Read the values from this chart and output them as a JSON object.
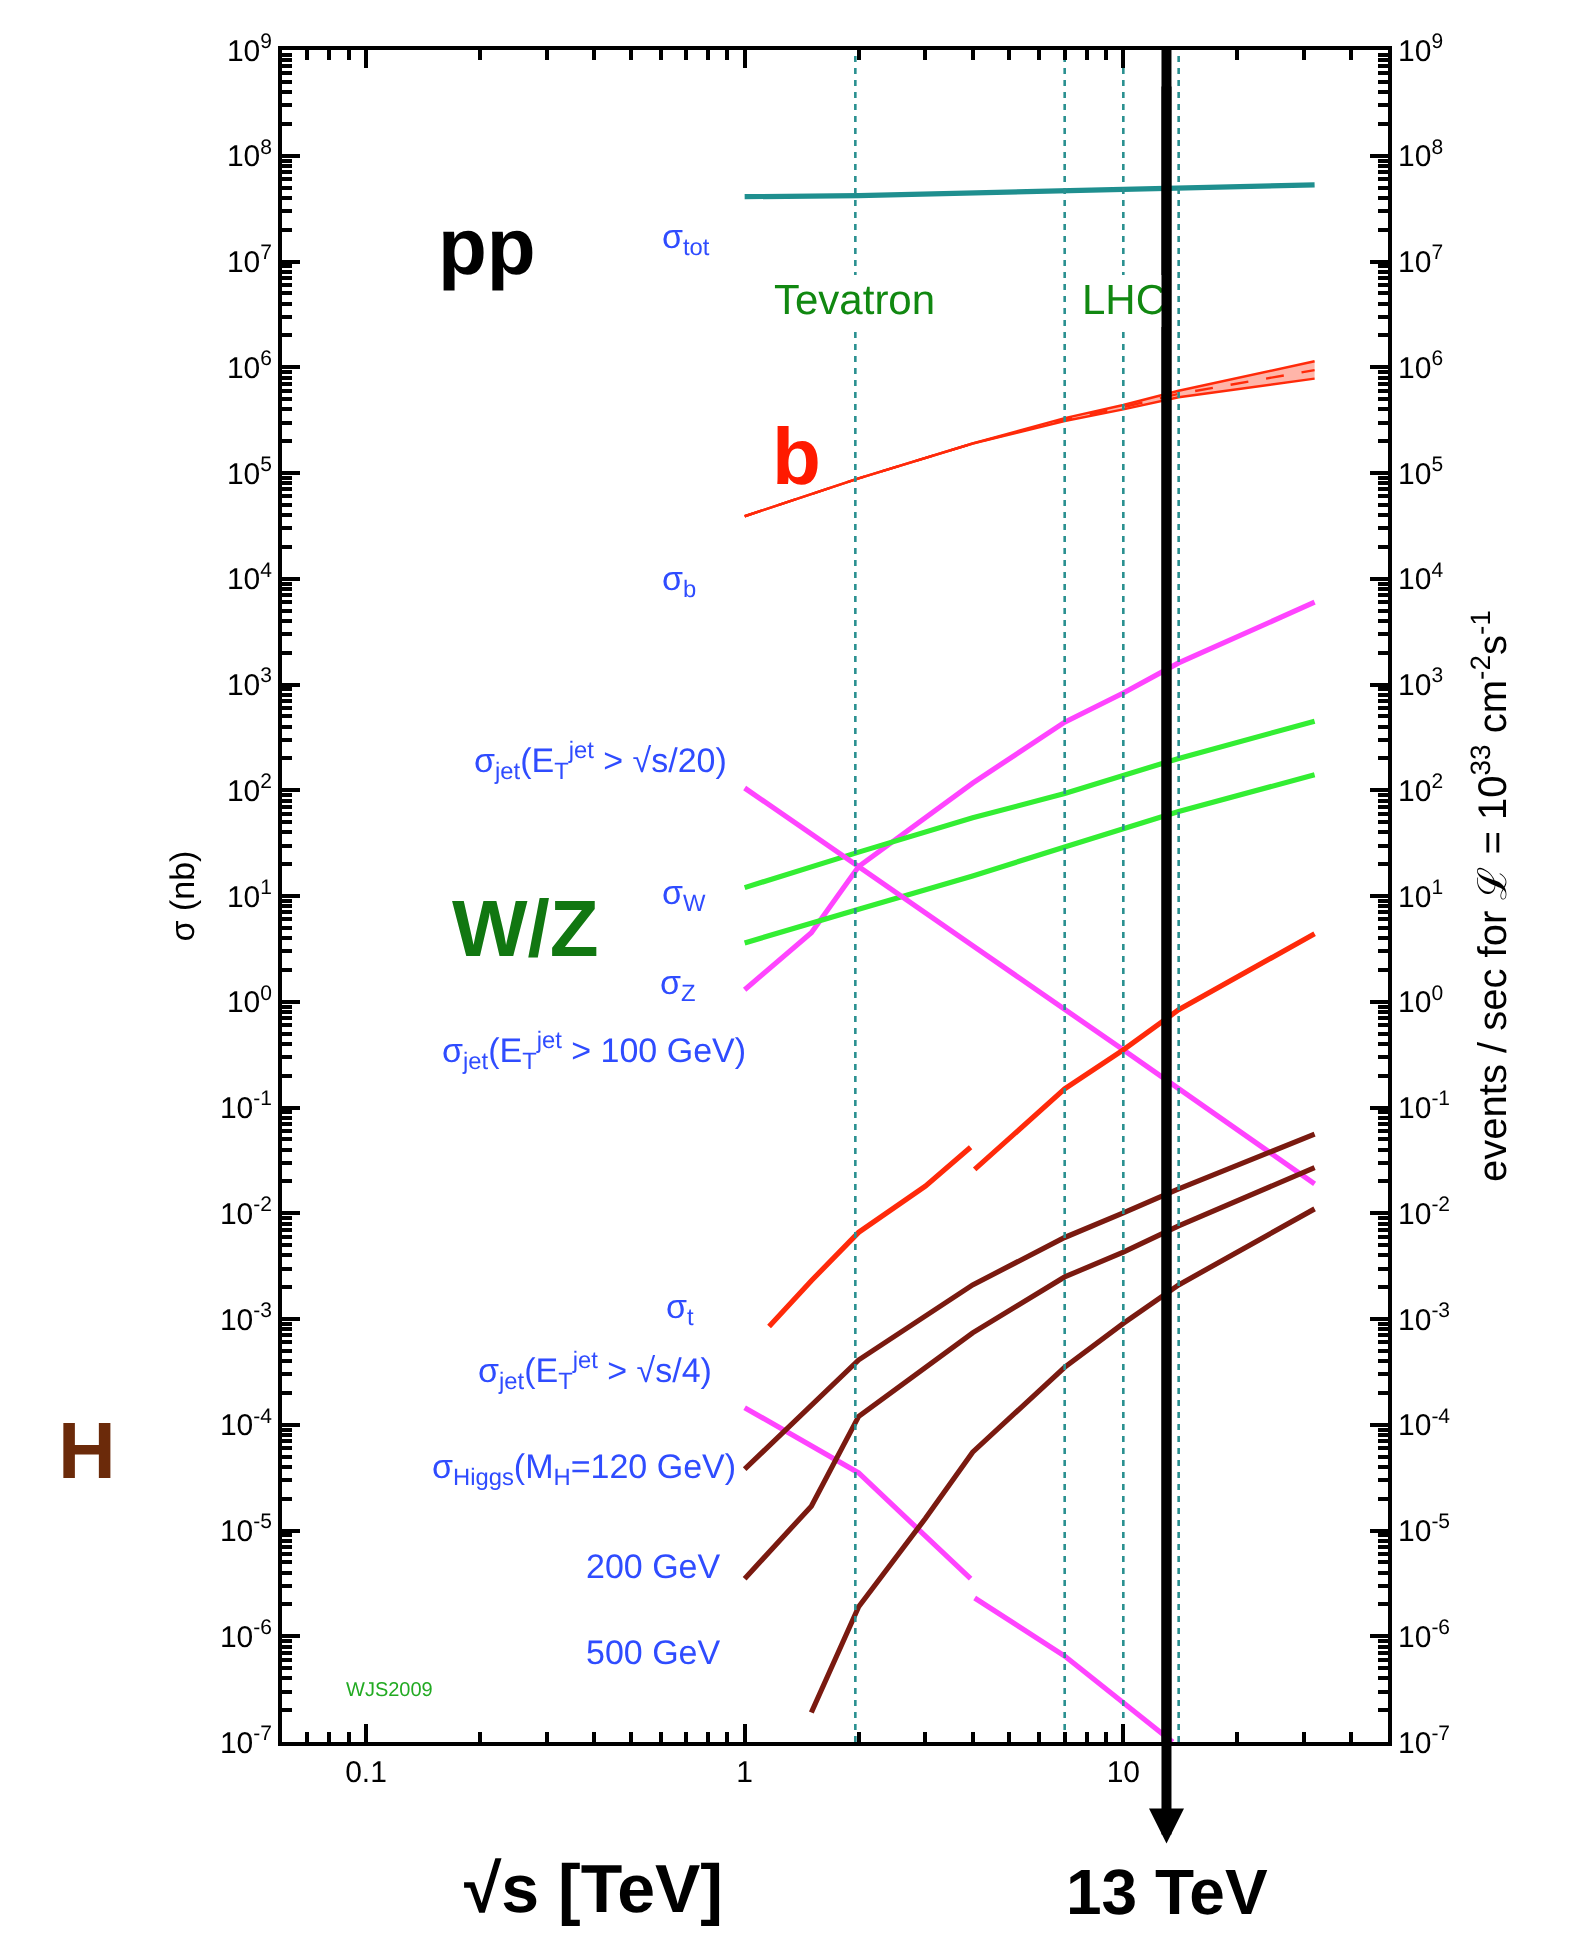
{
  "chart_data": {
    "type": "line",
    "xlabel": "√s [TeV]",
    "ylabel": "σ (nb)",
    "y2label": "events / sec for ℒ = 10$^{33}$ cm$^{-2}$s$^{-1}$",
    "log": "xy",
    "xlim": [
      0.06,
      50
    ],
    "xticks": [
      0.1,
      1,
      10
    ],
    "ylim": [
      1e-07,
      1000000000.0
    ],
    "yticks": [
      {
        "value": 1e-07,
        "label": "10$^{-7}$"
      },
      {
        "value": 1e-06,
        "label": "10$^{-6}$"
      },
      {
        "value": 1e-05,
        "label": "10$^{-5}$"
      },
      {
        "value": 0.0001,
        "label": "10$^{-4}$"
      },
      {
        "value": 0.001,
        "label": "10$^{-3}$"
      },
      {
        "value": 0.01,
        "label": "10$^{-2}$"
      },
      {
        "value": 0.1,
        "label": "10$^{-1}$"
      },
      {
        "value": 1,
        "label": "10$^{0}$"
      },
      {
        "value": 10,
        "label": "10$^{1}$"
      },
      {
        "value": 100,
        "label": "10$^{2}$"
      },
      {
        "value": 1000,
        "label": "10$^{3}$"
      },
      {
        "value": 10000.0,
        "label": "10$^{4}$"
      },
      {
        "value": 100000.0,
        "label": "10$^{5}$"
      },
      {
        "value": 1000000.0,
        "label": "10$^{6}$"
      },
      {
        "value": 10000000.0,
        "label": "10$^{7}$"
      },
      {
        "value": 100000000.0,
        "label": "10$^{8}$"
      },
      {
        "value": 1000000000.0,
        "label": "10$^{9}$"
      }
    ],
    "series": [
      {
        "color": "#1f8f8f",
        "x": [
          1,
          2,
          10,
          32
        ],
        "values": [
          41000000.0,
          42000000.0,
          48000000.0,
          53000000.0
        ]
      },
      {
        "color": "#ff2a0a",
        "line_style": "dashed",
        "x": [
          1,
          2,
          4,
          7,
          10,
          14,
          32
        ],
        "values": [
          39000.0,
          89000.0,
          190000.0,
          320000.0,
          420000.0,
          560000.0,
          940000.0
        ],
        "lower": [
          39000.0,
          89000.0,
          190000.0,
          310000.0,
          400000.0,
          520000.0,
          780000.0
        ],
        "upper": [
          39000.0,
          89000.0,
          190000.0,
          330000.0,
          440000.0,
          600000.0,
          1140000.0
        ]
      },
      {
        "color": "#ff44ff",
        "x": [
          1,
          1.5,
          2,
          4,
          7,
          10,
          14,
          32
        ],
        "values": [
          1.3,
          4.5,
          19,
          117,
          440,
          830,
          1600,
          6000
        ]
      },
      {
        "color": "#33ee33",
        "x": [
          1,
          2,
          4,
          7,
          14,
          32
        ],
        "values": [
          12,
          26,
          55,
          93,
          200,
          450
        ]
      },
      {
        "color": "#33ee33",
        "x": [
          1,
          2,
          4,
          7,
          14,
          32
        ],
        "values": [
          3.6,
          7.5,
          15.5,
          29,
          63,
          140
        ]
      },
      {
        "color": "#ff44ff",
        "x": [
          1,
          2,
          4,
          10,
          32
        ],
        "values": [
          105,
          19,
          3.4,
          0.35,
          0.019
        ]
      },
      {
        "color": "#ff2a0a",
        "x": [
          1.16,
          1.5,
          2,
          3,
          3.95,
          4,
          4.05,
          7,
          10,
          14,
          32
        ],
        "values": [
          0.00085,
          0.0023,
          0.0066,
          0.018,
          0.042,
          null,
          0.026,
          0.15,
          0.35,
          0.84,
          4.4
        ]
      },
      {
        "color": "#ff44ff",
        "x": [
          1,
          2,
          3.95,
          4,
          4.05,
          7,
          13.5
        ],
        "values": [
          0.000145,
          3.5e-05,
          3.5e-06,
          null,
          2.3e-06,
          6.5e-07,
          1e-07
        ]
      },
      {
        "color": "#7a1a10",
        "x": [
          1,
          2,
          4,
          7,
          10,
          14,
          32
        ],
        "values": [
          3.8e-05,
          0.00041,
          0.0021,
          0.0059,
          0.0101,
          0.017,
          0.056
        ]
      },
      {
        "color": "#7a1a10",
        "x": [
          1,
          1.5,
          2,
          4,
          7,
          10,
          14,
          32
        ],
        "values": [
          3.5e-06,
          1.7e-05,
          0.00012,
          0.00074,
          0.0025,
          0.0043,
          0.0076,
          0.027
        ]
      },
      {
        "color": "#7a1a10",
        "x": [
          1.5,
          2,
          3,
          4,
          7,
          10,
          14,
          32
        ],
        "values": [
          1.9e-07,
          1.9e-06,
          1.3e-05,
          5.5e-05,
          0.00035,
          0.00091,
          0.0021,
          0.011
        ]
      }
    ],
    "ref_lines": [
      {
        "axis": "x",
        "value": 1.96,
        "label": "Tevatron",
        "color": "#2a9090",
        "line_style": "dotted"
      },
      {
        "axis": "x",
        "value": 7,
        "label": null,
        "color": "#2a9090",
        "line_style": "dotted"
      },
      {
        "axis": "x",
        "value": 10,
        "label": "LHC",
        "color": "#2a9090",
        "line_style": "dotted"
      },
      {
        "axis": "x",
        "value": 14,
        "label": null,
        "color": "#2a9090",
        "line_style": "dotted"
      },
      {
        "axis": "x",
        "value": 13,
        "label": "13 TeV",
        "color": "#000000",
        "line_style": "solid"
      }
    ],
    "annotations": [
      "σ$_{tot}$",
      "σ$_{b}$",
      "σ$_{jet}$(E$_{T}$$^{jet}$ > √s/20)",
      "σ$_{W}$",
      "σ$_{Z}$",
      "σ$_{jet}$(E$_{T}$$^{jet}$ > 100 GeV)",
      "σ$_{t}$",
      "σ$_{jet}$(E$_{T}$$^{jet}$ > √s/4)",
      "σ$_{Higgs}$(M$_{H}$=120 GeV)",
      "200 GeV",
      "500 GeV",
      "pp",
      "b",
      "W/Z",
      "H",
      "WJS2009"
    ]
  }
}
